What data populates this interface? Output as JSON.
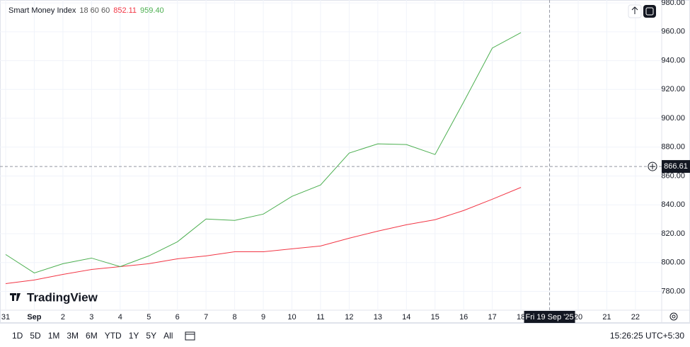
{
  "chart_data": {
    "type": "line",
    "title": "Smart Money Index",
    "subtitle": "18 60 60",
    "categories": [
      "31",
      "Sep",
      "2",
      "3",
      "4",
      "5",
      "6",
      "7",
      "8",
      "9",
      "10",
      "11",
      "12",
      "13",
      "14",
      "15",
      "16",
      "17",
      "18",
      "19",
      "20",
      "21",
      "22"
    ],
    "series": [
      {
        "color": "#f23645",
        "values": [
          785.4,
          787.9,
          791.8,
          795.2,
          797.2,
          799.2,
          802.6,
          804.6,
          807.5,
          807.5,
          809.5,
          811.5,
          816.9,
          821.8,
          826.2,
          829.7,
          836.1,
          843.9,
          852.11,
          null,
          null,
          null,
          null
        ]
      },
      {
        "color": "#4caf50",
        "values": [
          805.6,
          792.8,
          799.2,
          803.1,
          797.2,
          804.6,
          814.4,
          830.2,
          829.2,
          833.6,
          845.9,
          853.8,
          875.9,
          882.3,
          881.8,
          874.9,
          911.3,
          948.7,
          959.4,
          null,
          null,
          null,
          null
        ],
        "value_labels": [
          null,
          null,
          null,
          null,
          null,
          null,
          null,
          null,
          null,
          null,
          null,
          null,
          null,
          null,
          null,
          null,
          null,
          null,
          "959.40",
          null,
          null,
          null,
          null
        ]
      }
    ],
    "ylim": [
      767,
      982
    ],
    "yticks": [
      {
        "value": 780,
        "label": "780.00"
      },
      {
        "value": 800,
        "label": "800.00"
      },
      {
        "value": 820,
        "label": "820.00"
      },
      {
        "value": 840,
        "label": "840.00"
      },
      {
        "value": 860,
        "label": "860.00"
      },
      {
        "value": 880,
        "label": "880.00"
      },
      {
        "value": 900,
        "label": "900.00"
      },
      {
        "value": 920,
        "label": "920.00"
      },
      {
        "value": 940,
        "label": "940.00"
      },
      {
        "value": 960,
        "label": "960.00"
      },
      {
        "value": 980,
        "label": "980.00"
      }
    ],
    "grid": true,
    "crosshair": {
      "category": "19",
      "x_label": "Fri 19 Sep '25",
      "y": 866.61
    },
    "watermark": "TradingView"
  },
  "toolbar": {
    "timeframes": [
      "1D",
      "5D",
      "1M",
      "3M",
      "6M",
      "YTD",
      "1Y",
      "5Y",
      "All"
    ],
    "clock": "15:26:25 UTC+5:30"
  }
}
